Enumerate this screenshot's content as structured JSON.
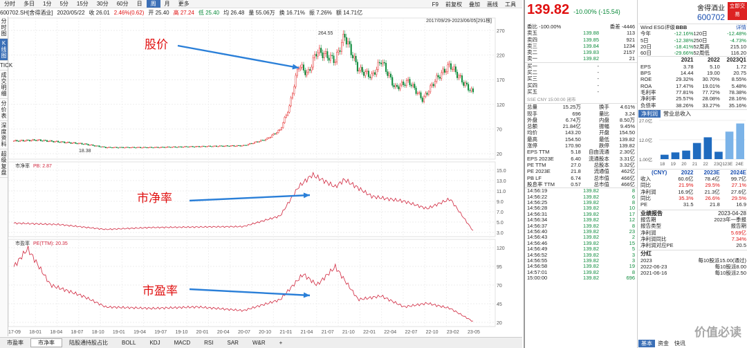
{
  "toolbar": {
    "items": [
      "分时",
      "多日",
      "1分",
      "5分",
      "15分",
      "30分",
      "60分",
      "日",
      "周",
      "月",
      "更多"
    ],
    "active": "周",
    "right": [
      "F9",
      "前复权",
      "叠加",
      "画线",
      "工具"
    ]
  },
  "info": {
    "code": "600702.SH[舍得酒业]",
    "date": "2020/05/22",
    "close": "收 26.01",
    "chg": "2.46%(0.62)",
    "open": "开 25.40",
    "high": "高 27.24",
    "low": "低 25.40",
    "avg": "均 26.48",
    "vol": "量 55.06万",
    "turnover": "换 16.71%",
    "amp": "振 7.26%",
    "amount": "额 14.71亿"
  },
  "sidebar": [
    "分时图",
    "K线图",
    "TICK",
    "成交明细",
    "分价表",
    "深度资料",
    "超级复盘"
  ],
  "range_label": "2017/09/29-2023/06/05[291根]",
  "panels": {
    "price": {
      "right_ticks": [
        "270",
        "220",
        "170",
        "120",
        "70",
        "20"
      ],
      "max_label": "264.55",
      "min_label": "18.38",
      "annotation": "股价"
    },
    "pb": {
      "title": "市净率",
      "legend": "PB: 2.87",
      "right_ticks": [
        "15.0",
        "13.0",
        "11.0",
        "9.0",
        "7.0",
        "5.0",
        "3.0"
      ],
      "annotation": "市净率"
    },
    "pe": {
      "title": "市盈率",
      "legend": "PE(TTM): 20.35",
      "right_ticks": [
        "120",
        "95",
        "70",
        "45",
        "20"
      ],
      "annotation": "市盈率"
    }
  },
  "xaxis": [
    "17-09",
    "18-01",
    "18-04",
    "18-07",
    "18-10",
    "19-01",
    "19-04",
    "19-07",
    "19-10",
    "20-01",
    "20-04",
    "20-07",
    "20-10",
    "21-01",
    "21-04",
    "21-07",
    "21-10",
    "22-01",
    "22-04",
    "22-07",
    "22-10",
    "23-02",
    "23-05"
  ],
  "bottom_tabs": [
    "市盈率",
    "市净率",
    "陆股通持股占比",
    "BOLL",
    "KDJ",
    "MACD",
    "RSI",
    "SAR",
    "W&R"
  ],
  "quote": {
    "price": "139.82",
    "chg": "-10.00%",
    "chg_abs": "(-15.54)",
    "name": "舍得酒业",
    "code": "600702",
    "btn": "立即交易"
  },
  "orderbook": {
    "weibi": "委比 -100.00%",
    "weicha": "委差 -4446",
    "asks": [
      [
        "卖五",
        "139.88",
        "113"
      ],
      [
        "卖四",
        "139.85",
        "921"
      ],
      [
        "卖三",
        "139.84",
        "1234"
      ],
      [
        "卖二",
        "139.83",
        "2157"
      ],
      [
        "卖一",
        "139.82",
        "21"
      ]
    ],
    "bids": [
      [
        "买一",
        "-",
        ""
      ],
      [
        "买二",
        "-",
        ""
      ],
      [
        "买三",
        "-",
        ""
      ],
      [
        "买四",
        "-",
        ""
      ],
      [
        "买五",
        "-",
        ""
      ]
    ],
    "meta": "SSE CNY 15:00:00 闭市"
  },
  "stats": [
    [
      "总量",
      "15.25万",
      "换手",
      "4.61%"
    ],
    [
      "现手",
      "696",
      "量比",
      "3.24"
    ],
    [
      "外盘",
      "6.74万",
      "内盘",
      "8.50万"
    ],
    [
      "总额",
      "21.84亿",
      "振幅",
      "9.45%"
    ],
    [
      "均价",
      "143.20",
      "开盘",
      "154.50"
    ],
    [
      "最高",
      "154.50",
      "最低",
      "139.82"
    ],
    [
      "涨停",
      "170.90",
      "跌停",
      "139.82"
    ],
    [
      "EPS TTM",
      "5.18",
      "自由流通",
      "2.30亿"
    ],
    [
      "EPS 2023E",
      "6.40",
      "流通股本",
      "3.31亿"
    ],
    [
      "PE TTM",
      "27.0",
      "总股本",
      "3.32亿"
    ],
    [
      "PE 2023E",
      "21.8",
      "流通值",
      "462亿"
    ],
    [
      "PB LF",
      "6.74",
      "总市值",
      "466亿"
    ],
    [
      "股息率 TTM",
      "0.57",
      "总市值",
      "466亿"
    ]
  ],
  "ticks": [
    [
      "14:56:19",
      "139.82",
      "8"
    ],
    [
      "14:56:22",
      "139.82",
      "6"
    ],
    [
      "14:56:25",
      "139.82",
      "8"
    ],
    [
      "14:56:28",
      "139.82",
      "10"
    ],
    [
      "14:56:31",
      "139.82",
      "17"
    ],
    [
      "14:56:34",
      "139.82",
      "12"
    ],
    [
      "14:56:37",
      "139.82",
      "8"
    ],
    [
      "14:56:40",
      "139.82",
      "23"
    ],
    [
      "14:56:43",
      "139.82",
      "2"
    ],
    [
      "14:56:46",
      "139.82",
      "15"
    ],
    [
      "14:56:49",
      "139.82",
      "5"
    ],
    [
      "14:56:52",
      "139.82",
      "3"
    ],
    [
      "14:56:55",
      "139.82",
      "3"
    ],
    [
      "14:56:58",
      "139.82",
      "19"
    ],
    [
      "14:57:01",
      "139.82",
      "8"
    ],
    [
      "15:00:00",
      "139.82",
      "696"
    ]
  ],
  "esg": {
    "label": "Wind ESG评级",
    "rating": "BBB",
    "detail": "详情"
  },
  "perf": [
    [
      "今年",
      "-12.16%",
      "120日",
      "-12.48%"
    ],
    [
      "5日",
      "-12.38%",
      "250日",
      "-4.73%"
    ],
    [
      "20日",
      "-18.41%",
      "52周高",
      "215.10"
    ],
    [
      "60日",
      "-29.66%",
      "52周低",
      "116.20"
    ]
  ],
  "fin_head": [
    "",
    "2021",
    "2022",
    "2023Q1"
  ],
  "fin": [
    [
      "EPS",
      "3.78",
      "5.10",
      "1.72"
    ],
    [
      "BPS",
      "14.44",
      "19.00",
      "20.75"
    ],
    [
      "ROE",
      "29.32%",
      "30.70%",
      "8.55%"
    ],
    [
      "ROA",
      "17.47%",
      "19.01%",
      "5.48%"
    ],
    [
      "毛利率",
      "77.81%",
      "77.72%",
      "78.38%"
    ],
    [
      "净利率",
      "25.57%",
      "28.08%",
      "28.16%"
    ],
    [
      "负债率",
      "38.26%",
      "33.27%",
      "35.16%"
    ]
  ],
  "profit_tabs": [
    "净利润",
    "营业总收入"
  ],
  "chart_data": {
    "type": "bar",
    "categories": [
      "18",
      "19",
      "20",
      "21",
      "22",
      "23Q1",
      "23E",
      "24E"
    ],
    "values": [
      3.4,
      5.2,
      6.6,
      12.5,
      16.9,
      5.7,
      21.3,
      27.6
    ],
    "y_ticks": [
      "27.0亿",
      "12.0亿",
      "1.00亿"
    ],
    "ylim": [
      0,
      30
    ]
  },
  "forecast_head": [
    "(CNY)",
    "2022",
    "2023E",
    "2024E"
  ],
  "forecast": [
    [
      "收入",
      "60.6亿",
      "78.4亿",
      "99.7亿"
    ],
    [
      "同比",
      "21.9%",
      "29.5%",
      "27.1%"
    ],
    [
      "净利润",
      "16.9亿",
      "21.3亿",
      "27.6亿"
    ],
    [
      "同比",
      "35.3%",
      "26.6%",
      "29.5%"
    ],
    [
      "PE",
      "31.5",
      "21.8",
      "16.9"
    ]
  ],
  "report": {
    "title": "业绩报告",
    "date": "2023-04-28",
    "rows": [
      [
        "报告期",
        "2023年一季报"
      ],
      [
        "报告类型",
        "报告期"
      ],
      [
        "净利润",
        "5.69亿"
      ],
      [
        "净利润同比",
        "7.34%"
      ],
      [
        "净利润对应PE",
        "20.5"
      ]
    ]
  },
  "dividend": {
    "title": "分红",
    "rows": [
      [
        "2023",
        "每10股派15.00(通过)"
      ],
      [
        "2022-06-23",
        "每10股派8.00"
      ],
      [
        "2021-06-16",
        "每10股派2.50"
      ]
    ]
  },
  "rp_tabs": [
    "基本",
    "资金",
    "快讯"
  ],
  "watermark": "价值必读"
}
